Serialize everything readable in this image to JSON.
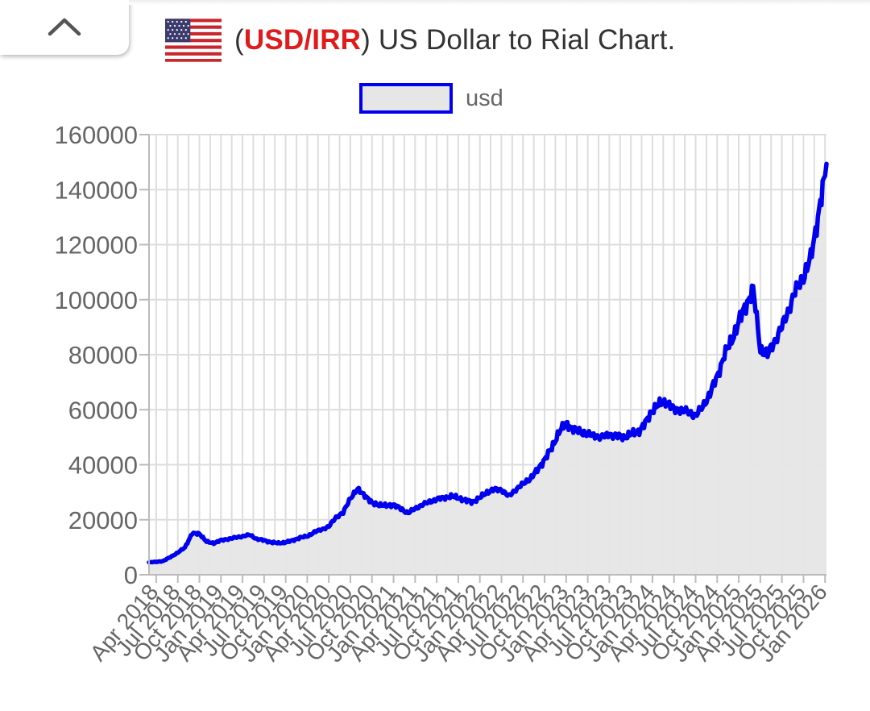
{
  "header": {
    "title_prefix": "(",
    "title_pair": "USD/IRR",
    "title_suffix": ") US Dollar to Rial Chart.",
    "collapse_icon": "chevron-up-icon",
    "flag_icon": "us-flag-icon"
  },
  "chart_data": {
    "type": "area",
    "title": "(USD/IRR) US Dollar to Rial Chart.",
    "xlabel": "",
    "ylabel": "",
    "ylim": [
      0,
      160000
    ],
    "y_ticks": [
      0,
      20000,
      40000,
      60000,
      80000,
      100000,
      120000,
      140000,
      160000
    ],
    "x_tick_labels": [
      "Apr 2018",
      "Jul 2018",
      "Oct 2018",
      "Jan 2019",
      "Apr 2019",
      "Jul 2019",
      "Oct 2019",
      "Jan 2020",
      "Apr 2020",
      "Jul 2020",
      "Oct 2020",
      "Jan 2021",
      "Apr 2021",
      "Jul 2021",
      "Oct 2021",
      "Jan 2022",
      "Apr 2022",
      "Jul 2022",
      "Oct 2022",
      "Jan 2023",
      "Apr 2023",
      "Jul 2023",
      "Oct 2023",
      "Jan 2024",
      "Apr 2024",
      "Jul 2024",
      "Oct 2024",
      "Jan 2025",
      "Apr 2025",
      "Jul 2025",
      "Oct 2025",
      "Jan 2026"
    ],
    "grid": true,
    "legend_position": "top-center",
    "colors": {
      "line": "#0000ee",
      "fill": "#e6e6e6",
      "grid": "#dddddd",
      "axis": "#bbbbbb"
    },
    "series": [
      {
        "name": "usd",
        "x": [
          "2018-03",
          "2018-04",
          "2018-05",
          "2018-06",
          "2018-07",
          "2018-08",
          "2018-09",
          "2018-10",
          "2018-11",
          "2018-12",
          "2019-01",
          "2019-02",
          "2019-03",
          "2019-04",
          "2019-05",
          "2019-06",
          "2019-07",
          "2019-08",
          "2019-09",
          "2019-10",
          "2019-11",
          "2019-12",
          "2020-01",
          "2020-02",
          "2020-03",
          "2020-04",
          "2020-05",
          "2020-06",
          "2020-07",
          "2020-08",
          "2020-09",
          "2020-10",
          "2020-11",
          "2020-12",
          "2021-01",
          "2021-02",
          "2021-03",
          "2021-04",
          "2021-05",
          "2021-06",
          "2021-07",
          "2021-08",
          "2021-09",
          "2021-10",
          "2021-11",
          "2021-12",
          "2022-01",
          "2022-02",
          "2022-03",
          "2022-04",
          "2022-05",
          "2022-06",
          "2022-07",
          "2022-08",
          "2022-09",
          "2022-10",
          "2022-11",
          "2022-12",
          "2023-01",
          "2023-02",
          "2023-03",
          "2023-04",
          "2023-05",
          "2023-06",
          "2023-07",
          "2023-08",
          "2023-09",
          "2023-10",
          "2023-11",
          "2023-12",
          "2024-01",
          "2024-02",
          "2024-03",
          "2024-04",
          "2024-05",
          "2024-06",
          "2024-07",
          "2024-08",
          "2024-09",
          "2024-10",
          "2024-11",
          "2024-12",
          "2025-01",
          "2025-02",
          "2025-03",
          "2025-04",
          "2025-05",
          "2025-06",
          "2025-07",
          "2025-08",
          "2025-09",
          "2025-10",
          "2025-11",
          "2025-12",
          "2026-01"
        ],
        "values": [
          4500,
          4700,
          5000,
          6500,
          8000,
          10000,
          15000,
          15000,
          12000,
          11500,
          12500,
          13000,
          13500,
          14000,
          14500,
          13000,
          12500,
          11800,
          11500,
          11800,
          12500,
          13500,
          14000,
          15500,
          16500,
          17500,
          21000,
          22500,
          28000,
          31000,
          29000,
          26000,
          25500,
          25000,
          25500,
          24000,
          22500,
          24000,
          25500,
          26500,
          27500,
          28000,
          28500,
          28000,
          27000,
          26500,
          28000,
          30000,
          31000,
          31000,
          28500,
          31000,
          33000,
          35000,
          38000,
          42000,
          46000,
          52000,
          55000,
          53000,
          52000,
          51000,
          50500,
          50000,
          51000,
          50500,
          50000,
          51000,
          52000,
          55000,
          60000,
          62000,
          63000,
          60000,
          60000,
          59000,
          58000,
          61000,
          66000,
          72000,
          80000,
          85000,
          92000,
          98000,
          104000,
          82000,
          80000,
          85000,
          90000,
          97000,
          104000,
          108000,
          115000,
          130000,
          145000
        ]
      }
    ]
  }
}
